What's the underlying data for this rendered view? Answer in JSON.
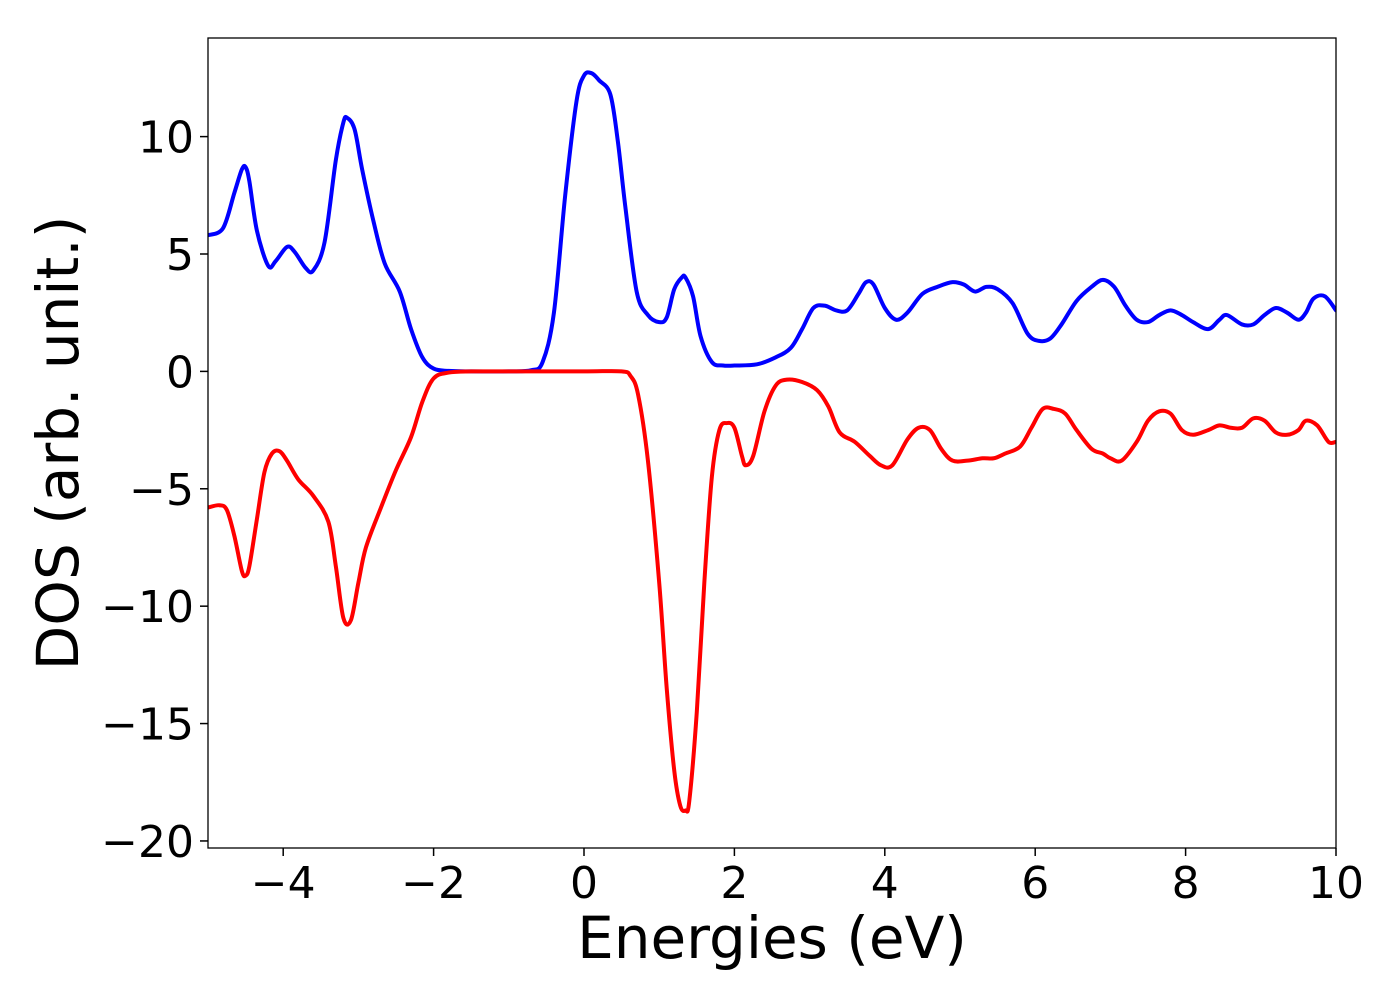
{
  "chart_data": {
    "type": "line",
    "title": "",
    "xlabel": "Energies (eV)",
    "ylabel": "DOS (arb. unit.)",
    "xlim": [
      -5,
      10
    ],
    "ylim": [
      -20.3,
      14.2
    ],
    "grid": false,
    "legend": "none",
    "x_ticks": [
      -4,
      -2,
      0,
      2,
      4,
      6,
      8,
      10
    ],
    "x_tick_labels": [
      "−4",
      "−2",
      "0",
      "2",
      "4",
      "6",
      "8",
      "10"
    ],
    "y_ticks": [
      10,
      5,
      0,
      -5,
      -10,
      -15,
      -20
    ],
    "y_tick_labels": [
      "10",
      "5",
      "0",
      "−5",
      "−10",
      "−15",
      "−20"
    ],
    "series": [
      {
        "color": "#0000ff",
        "x": [
          -5.0,
          -4.8,
          -4.65,
          -4.55,
          -4.5,
          -4.45,
          -4.35,
          -4.2,
          -4.1,
          -3.95,
          -3.85,
          -3.7,
          -3.6,
          -3.45,
          -3.3,
          -3.2,
          -3.15,
          -3.05,
          -2.95,
          -2.8,
          -2.65,
          -2.45,
          -2.3,
          -2.15,
          -2.0,
          -1.8,
          -1.5,
          -1.0,
          -0.7,
          -0.55,
          -0.4,
          -0.25,
          -0.1,
          0.0,
          0.1,
          0.2,
          0.35,
          0.45,
          0.55,
          0.7,
          0.85,
          1.0,
          1.1,
          1.2,
          1.3,
          1.35,
          1.45,
          1.55,
          1.7,
          1.85,
          2.0,
          2.3,
          2.55,
          2.75,
          2.9,
          3.05,
          3.2,
          3.35,
          3.5,
          3.65,
          3.75,
          3.85,
          4.0,
          4.15,
          4.3,
          4.5,
          4.7,
          4.9,
          5.05,
          5.2,
          5.35,
          5.5,
          5.7,
          5.9,
          6.05,
          6.2,
          6.35,
          6.55,
          6.75,
          6.9,
          7.05,
          7.2,
          7.35,
          7.5,
          7.65,
          7.8,
          7.95,
          8.1,
          8.3,
          8.45,
          8.55,
          8.75,
          8.9,
          9.05,
          9.2,
          9.35,
          9.5,
          9.6,
          9.7,
          9.85,
          10.0
        ],
        "y": [
          5.8,
          6.1,
          7.6,
          8.6,
          8.7,
          8.1,
          6.0,
          4.5,
          4.7,
          5.3,
          5.1,
          4.4,
          4.3,
          5.5,
          9.0,
          10.6,
          10.8,
          10.3,
          8.6,
          6.4,
          4.6,
          3.4,
          1.8,
          0.6,
          0.12,
          0.02,
          0.0,
          0.0,
          0.05,
          0.4,
          2.5,
          7.5,
          11.5,
          12.6,
          12.7,
          12.4,
          11.8,
          9.8,
          7.0,
          3.4,
          2.4,
          2.1,
          2.3,
          3.5,
          4.0,
          4.0,
          3.2,
          1.5,
          0.4,
          0.25,
          0.25,
          0.3,
          0.6,
          1.0,
          1.8,
          2.7,
          2.8,
          2.6,
          2.6,
          3.3,
          3.8,
          3.7,
          2.7,
          2.2,
          2.5,
          3.3,
          3.6,
          3.8,
          3.7,
          3.4,
          3.6,
          3.5,
          2.9,
          1.6,
          1.3,
          1.4,
          2.0,
          3.0,
          3.6,
          3.9,
          3.6,
          2.8,
          2.2,
          2.1,
          2.4,
          2.6,
          2.4,
          2.1,
          1.8,
          2.2,
          2.4,
          2.0,
          2.0,
          2.4,
          2.7,
          2.5,
          2.2,
          2.5,
          3.1,
          3.2,
          2.6
        ]
      },
      {
        "color": "#ff0000",
        "x": [
          -5.0,
          -4.85,
          -4.75,
          -4.65,
          -4.55,
          -4.5,
          -4.45,
          -4.35,
          -4.25,
          -4.15,
          -4.05,
          -3.95,
          -3.8,
          -3.6,
          -3.4,
          -3.3,
          -3.2,
          -3.1,
          -3.0,
          -2.9,
          -2.7,
          -2.5,
          -2.3,
          -2.15,
          -2.0,
          -1.8,
          -1.5,
          -1.0,
          0.0,
          0.5,
          0.62,
          0.72,
          0.85,
          1.0,
          1.1,
          1.2,
          1.28,
          1.35,
          1.4,
          1.5,
          1.6,
          1.7,
          1.8,
          1.9,
          2.0,
          2.1,
          2.15,
          2.25,
          2.4,
          2.55,
          2.7,
          2.9,
          3.1,
          3.25,
          3.4,
          3.6,
          3.8,
          3.95,
          4.1,
          4.3,
          4.45,
          4.6,
          4.75,
          4.9,
          5.1,
          5.3,
          5.45,
          5.6,
          5.8,
          5.95,
          6.1,
          6.25,
          6.4,
          6.55,
          6.75,
          6.9,
          7.0,
          7.15,
          7.35,
          7.5,
          7.65,
          7.8,
          7.95,
          8.1,
          8.3,
          8.45,
          8.6,
          8.75,
          8.9,
          9.05,
          9.2,
          9.35,
          9.5,
          9.6,
          9.75,
          9.9,
          10.0
        ],
        "y": [
          -5.8,
          -5.7,
          -5.9,
          -7.0,
          -8.5,
          -8.7,
          -8.3,
          -6.3,
          -4.3,
          -3.5,
          -3.4,
          -3.8,
          -4.6,
          -5.3,
          -6.4,
          -8.3,
          -10.5,
          -10.6,
          -9.0,
          -7.5,
          -5.8,
          -4.2,
          -2.8,
          -1.3,
          -0.3,
          -0.05,
          0.0,
          0.0,
          0.0,
          0.0,
          -0.2,
          -1.0,
          -3.8,
          -9.0,
          -13.5,
          -17.0,
          -18.5,
          -18.7,
          -18.3,
          -14.5,
          -9.0,
          -4.5,
          -2.5,
          -2.2,
          -2.4,
          -3.6,
          -4.0,
          -3.6,
          -1.7,
          -0.6,
          -0.35,
          -0.45,
          -0.8,
          -1.5,
          -2.6,
          -3.0,
          -3.6,
          -4.0,
          -4.0,
          -2.9,
          -2.4,
          -2.5,
          -3.3,
          -3.8,
          -3.8,
          -3.7,
          -3.7,
          -3.5,
          -3.2,
          -2.4,
          -1.6,
          -1.6,
          -1.8,
          -2.5,
          -3.3,
          -3.5,
          -3.7,
          -3.8,
          -3.0,
          -2.1,
          -1.7,
          -1.8,
          -2.5,
          -2.7,
          -2.5,
          -2.3,
          -2.4,
          -2.4,
          -2.0,
          -2.1,
          -2.6,
          -2.7,
          -2.5,
          -2.1,
          -2.3,
          -3.0,
          -3.0
        ]
      }
    ]
  }
}
